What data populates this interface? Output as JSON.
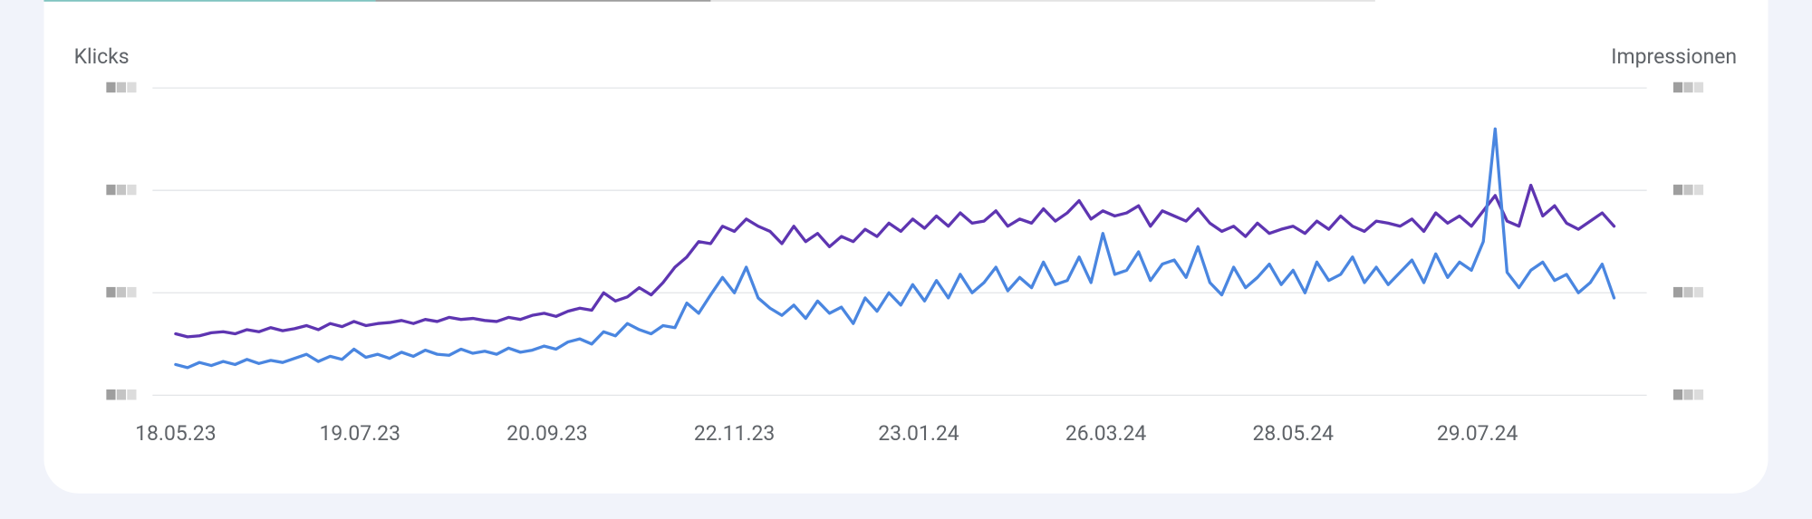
{
  "chart_data": {
    "type": "line",
    "x": [
      "18.05.23",
      "22.05.23",
      "26.05.23",
      "30.05.23",
      "03.06.23",
      "07.06.23",
      "11.06.23",
      "15.06.23",
      "19.06.23",
      "23.06.23",
      "27.06.23",
      "01.07.23",
      "05.07.23",
      "09.07.23",
      "13.07.23",
      "17.07.23",
      "21.07.23",
      "25.07.23",
      "29.07.23",
      "02.08.23",
      "06.08.23",
      "10.08.23",
      "14.08.23",
      "18.08.23",
      "22.08.23",
      "26.08.23",
      "30.08.23",
      "03.09.23",
      "07.09.23",
      "11.09.23",
      "15.09.23",
      "19.09.23",
      "23.09.23",
      "27.09.23",
      "01.10.23",
      "05.10.23",
      "09.10.23",
      "13.10.23",
      "17.10.23",
      "21.10.23",
      "25.10.23",
      "29.10.23",
      "02.11.23",
      "06.11.23",
      "10.11.23",
      "14.11.23",
      "18.11.23",
      "22.11.23",
      "26.11.23",
      "30.11.23",
      "04.12.23",
      "08.12.23",
      "12.12.23",
      "16.12.23",
      "20.12.23",
      "24.12.23",
      "28.12.23",
      "01.01.24",
      "05.01.24",
      "09.01.24",
      "13.01.24",
      "17.01.24",
      "21.01.24",
      "25.01.24",
      "29.01.24",
      "02.02.24",
      "06.02.24",
      "10.02.24",
      "14.02.24",
      "18.02.24",
      "22.02.24",
      "26.02.24",
      "01.03.24",
      "05.03.24",
      "09.03.24",
      "13.03.24",
      "17.03.24",
      "21.03.24",
      "25.03.24",
      "29.03.24",
      "02.04.24",
      "06.04.24",
      "10.04.24",
      "14.04.24",
      "18.04.24",
      "22.04.24",
      "26.04.24",
      "30.04.24",
      "04.05.24",
      "08.05.24",
      "12.05.24",
      "16.05.24",
      "20.05.24",
      "24.05.24",
      "28.05.24",
      "01.06.24",
      "05.06.24",
      "09.06.24",
      "13.06.24",
      "17.06.24",
      "21.06.24",
      "25.06.24",
      "29.06.24",
      "03.07.24",
      "07.07.24",
      "11.07.24",
      "15.07.24",
      "19.07.24",
      "23.07.24",
      "27.07.24",
      "31.07.24",
      "04.08.24",
      "08.08.24",
      "12.08.24",
      "16.08.24",
      "20.08.24",
      "24.08.24",
      "28.08.24",
      "01.09.24",
      "05.09.24",
      "09.09.24",
      "13.09.24"
    ],
    "xlim": [
      "18.05.23",
      "17.09.24"
    ],
    "xticks": [
      "18.05.23",
      "19.07.23",
      "20.09.23",
      "22.11.23",
      "23.01.24",
      "26.03.24",
      "28.05.24",
      "29.07.24"
    ],
    "ylim": [
      0,
      300
    ],
    "yticks": [
      0,
      100,
      200,
      300
    ],
    "y2lim": [
      0,
      300
    ],
    "y2ticks": [
      0,
      100,
      200,
      300
    ],
    "grid": true,
    "series": [
      {
        "name": "Klicks",
        "color": "#4a86e0",
        "axis": "y",
        "values": [
          30,
          27,
          32,
          29,
          33,
          30,
          35,
          31,
          34,
          32,
          36,
          40,
          33,
          38,
          35,
          45,
          37,
          40,
          36,
          42,
          38,
          44,
          40,
          39,
          45,
          41,
          43,
          40,
          46,
          42,
          44,
          48,
          45,
          52,
          55,
          50,
          62,
          58,
          70,
          64,
          60,
          68,
          66,
          90,
          80,
          98,
          115,
          100,
          125,
          95,
          85,
          78,
          88,
          75,
          92,
          80,
          86,
          70,
          95,
          82,
          100,
          88,
          108,
          92,
          112,
          95,
          118,
          100,
          110,
          125,
          102,
          115,
          105,
          130,
          108,
          112,
          135,
          110,
          158,
          118,
          122,
          140,
          112,
          128,
          132,
          115,
          145,
          110,
          98,
          125,
          105,
          115,
          128,
          108,
          122,
          100,
          130,
          112,
          118,
          135,
          110,
          125,
          108,
          120,
          132,
          110,
          138,
          115,
          130,
          122,
          150,
          260,
          120,
          105,
          122,
          130,
          112,
          118,
          100,
          110,
          128,
          95
        ]
      },
      {
        "name": "Impressionen",
        "color": "#5e35b1",
        "axis": "y2",
        "values": [
          60,
          57,
          58,
          61,
          62,
          60,
          64,
          62,
          66,
          63,
          65,
          68,
          64,
          70,
          67,
          72,
          68,
          70,
          71,
          73,
          70,
          74,
          72,
          76,
          74,
          75,
          73,
          72,
          76,
          74,
          78,
          80,
          77,
          82,
          85,
          83,
          100,
          92,
          96,
          105,
          98,
          110,
          125,
          135,
          150,
          148,
          165,
          160,
          172,
          165,
          160,
          148,
          165,
          150,
          158,
          145,
          155,
          150,
          162,
          155,
          168,
          160,
          172,
          163,
          175,
          165,
          178,
          168,
          170,
          180,
          165,
          172,
          168,
          182,
          170,
          178,
          190,
          172,
          180,
          175,
          178,
          185,
          165,
          180,
          175,
          170,
          182,
          168,
          160,
          165,
          155,
          168,
          158,
          162,
          165,
          158,
          170,
          162,
          175,
          165,
          160,
          170,
          168,
          165,
          172,
          160,
          178,
          168,
          175,
          165,
          180,
          195,
          170,
          165,
          205,
          175,
          185,
          168,
          162,
          170,
          178,
          165
        ]
      }
    ]
  }
}
